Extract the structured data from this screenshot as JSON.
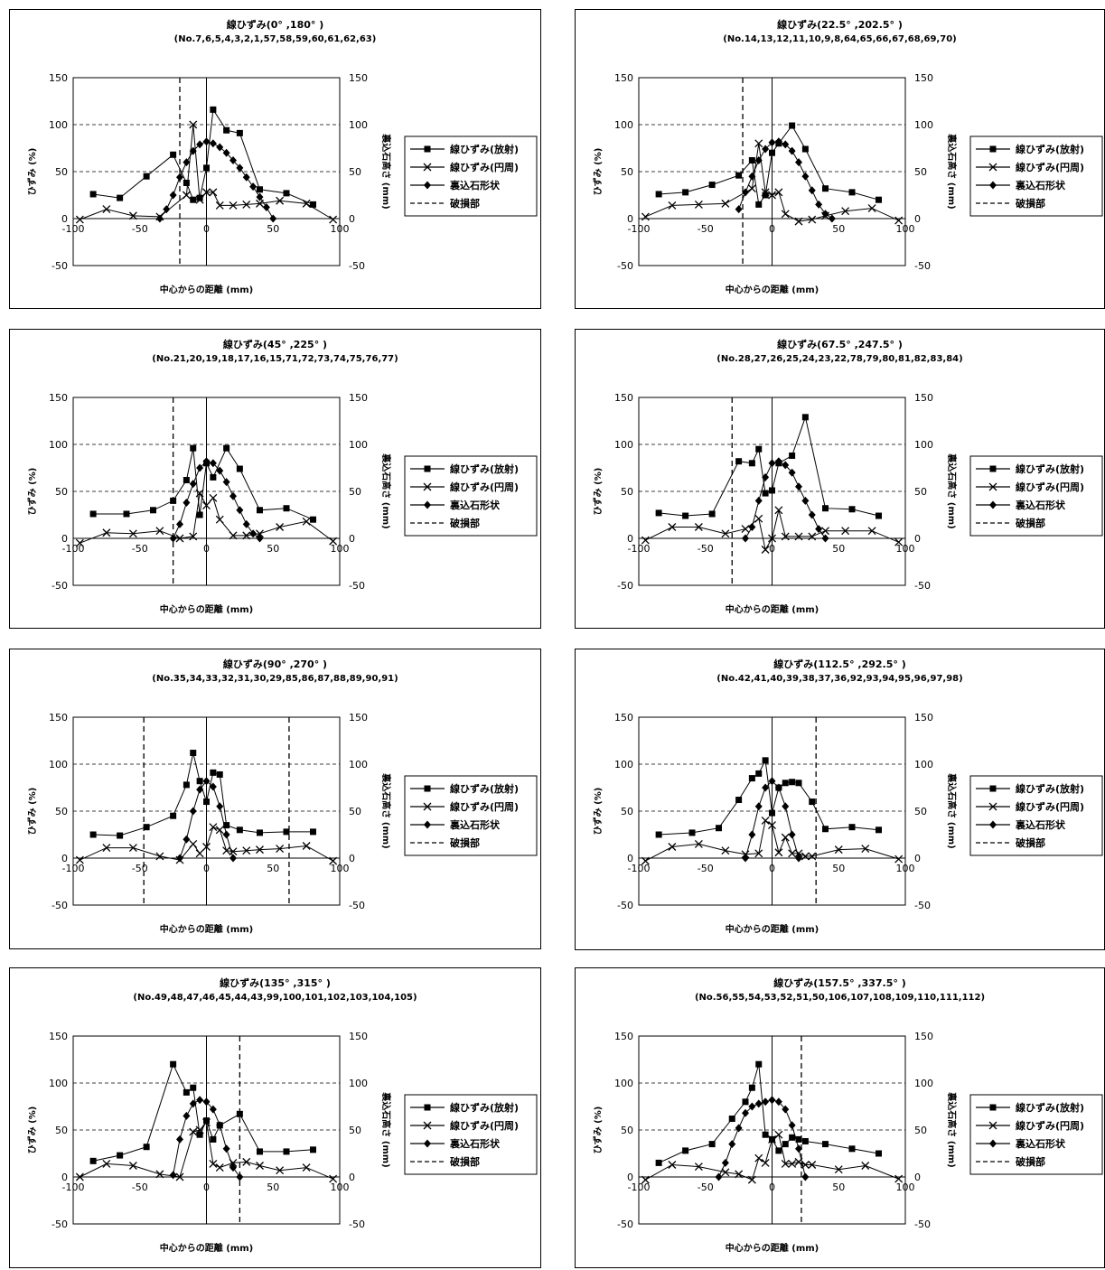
{
  "common": {
    "xlabel": "中心からの距離 (mm)",
    "ylabel_left": "ひずみ (%)",
    "ylabel_right": "裏込石高さ (mm)",
    "legend": [
      "線ひずみ(放射)",
      "線ひずみ(円周)",
      "裏込石形状",
      "破損部"
    ],
    "x_ticks": [
      "-100",
      "-50",
      "0",
      "50",
      "100"
    ],
    "y_ticks": [
      "150",
      "100",
      "50",
      "0",
      "-50"
    ]
  },
  "chart_data": [
    {
      "type": "line",
      "title": "線ひずみ(0° ,180° )",
      "subtitle": "(No.7,6,5,4,3,2,1,57,58,59,60,61,62,63)",
      "xlim": [
        -100,
        100
      ],
      "ylim": [
        -50,
        150
      ],
      "ylim_right": [
        -50,
        150
      ],
      "series": [
        {
          "name": "線ひずみ(放射)",
          "x": [
            -85,
            -65,
            -45,
            -25,
            -15,
            -10,
            -5,
            0,
            5,
            15,
            25,
            40,
            60,
            80
          ],
          "y": [
            26,
            22,
            45,
            68,
            38,
            20,
            22,
            54,
            116,
            94,
            91,
            31,
            27,
            15
          ]
        },
        {
          "name": "線ひずみ(円周)",
          "x": [
            -95,
            -75,
            -55,
            -35,
            -15,
            -10,
            -5,
            0,
            5,
            10,
            20,
            30,
            40,
            55,
            75,
            95
          ],
          "y": [
            -1,
            10,
            3,
            2,
            25,
            100,
            20,
            28,
            28,
            14,
            14,
            15,
            16,
            19,
            16,
            -1
          ]
        },
        {
          "name": "裏込石形状",
          "x": [
            -35,
            -30,
            -25,
            -20,
            -15,
            -10,
            -5,
            0,
            5,
            10,
            15,
            20,
            25,
            30,
            35,
            40,
            45,
            50
          ],
          "y": [
            0,
            10,
            25,
            44,
            60,
            72,
            79,
            82,
            80,
            76,
            70,
            62,
            54,
            44,
            34,
            23,
            12,
            0
          ]
        }
      ],
      "damage_x": [
        -20
      ]
    },
    {
      "type": "line",
      "title": "線ひずみ(22.5° ,202.5° )",
      "subtitle": "(No.14,13,12,11,10,9,8,64,65,66,67,68,69,70)",
      "xlim": [
        -100,
        100
      ],
      "ylim": [
        -50,
        150
      ],
      "ylim_right": [
        -50,
        150
      ],
      "series": [
        {
          "name": "線ひずみ(放射)",
          "x": [
            -85,
            -65,
            -45,
            -25,
            -15,
            -10,
            -5,
            0,
            5,
            15,
            25,
            40,
            60,
            80
          ],
          "y": [
            26,
            28,
            36,
            46,
            62,
            15,
            25,
            70,
            80,
            99,
            74,
            32,
            28,
            20
          ]
        },
        {
          "name": "線ひずみ(円周)",
          "x": [
            -95,
            -75,
            -55,
            -35,
            -15,
            -10,
            -5,
            0,
            5,
            10,
            20,
            30,
            40,
            55,
            75,
            95
          ],
          "y": [
            2,
            14,
            15,
            16,
            32,
            80,
            28,
            25,
            28,
            5,
            -3,
            -1,
            3,
            8,
            11,
            -2
          ]
        },
        {
          "name": "裏込石形状",
          "x": [
            -25,
            -20,
            -15,
            -10,
            -5,
            0,
            5,
            10,
            15,
            20,
            25,
            30,
            35,
            40,
            45
          ],
          "y": [
            10,
            28,
            45,
            62,
            74,
            81,
            82,
            79,
            72,
            60,
            45,
            30,
            15,
            5,
            0
          ]
        }
      ],
      "damage_x": [
        -22
      ]
    },
    {
      "type": "line",
      "title": "線ひずみ(45° ,225° )",
      "subtitle": "(No.21,20,19,18,17,16,15,71,72,73,74,75,76,77)",
      "xlim": [
        -100,
        100
      ],
      "ylim": [
        -50,
        150
      ],
      "ylim_right": [
        -50,
        150
      ],
      "series": [
        {
          "name": "線ひずみ(放射)",
          "x": [
            -85,
            -60,
            -40,
            -25,
            -15,
            -10,
            -5,
            0,
            5,
            15,
            25,
            40,
            60,
            80
          ],
          "y": [
            26,
            26,
            30,
            40,
            62,
            96,
            25,
            80,
            65,
            96,
            74,
            30,
            32,
            20
          ]
        },
        {
          "name": "線ひずみ(円周)",
          "x": [
            -95,
            -75,
            -55,
            -35,
            -20,
            -10,
            -5,
            0,
            5,
            10,
            20,
            30,
            40,
            55,
            75,
            95
          ],
          "y": [
            -5,
            6,
            5,
            8,
            0,
            2,
            48,
            35,
            43,
            20,
            3,
            3,
            5,
            12,
            18,
            -3
          ]
        },
        {
          "name": "裏込石形状",
          "x": [
            -25,
            -20,
            -15,
            -10,
            -5,
            0,
            5,
            10,
            15,
            20,
            25,
            30,
            35,
            40
          ],
          "y": [
            0,
            15,
            38,
            58,
            75,
            82,
            80,
            72,
            60,
            45,
            30,
            15,
            5,
            0
          ]
        }
      ],
      "damage_x": [
        -25
      ]
    },
    {
      "type": "line",
      "title": "線ひずみ(67.5° ,247.5° )",
      "subtitle": "(No.28,27,26,25,24,23,22,78,79,80,81,82,83,84)",
      "xlim": [
        -100,
        100
      ],
      "ylim": [
        -50,
        150
      ],
      "ylim_right": [
        -50,
        150
      ],
      "series": [
        {
          "name": "線ひずみ(放射)",
          "x": [
            -85,
            -65,
            -45,
            -25,
            -15,
            -10,
            -5,
            0,
            5,
            15,
            25,
            40,
            60,
            80
          ],
          "y": [
            27,
            24,
            26,
            82,
            80,
            95,
            48,
            51,
            80,
            88,
            129,
            32,
            31,
            24
          ]
        },
        {
          "name": "線ひずみ(円周)",
          "x": [
            -95,
            -75,
            -55,
            -35,
            -20,
            -10,
            -5,
            0,
            5,
            10,
            20,
            30,
            40,
            55,
            75,
            95
          ],
          "y": [
            -2,
            12,
            12,
            5,
            10,
            21,
            -12,
            0,
            30,
            2,
            2,
            2,
            8,
            8,
            8,
            -4
          ]
        },
        {
          "name": "裏込石形状",
          "x": [
            -20,
            -15,
            -10,
            -5,
            0,
            5,
            10,
            15,
            20,
            25,
            30,
            35,
            40
          ],
          "y": [
            0,
            12,
            40,
            65,
            80,
            82,
            78,
            70,
            55,
            40,
            25,
            10,
            0
          ]
        }
      ],
      "damage_x": [
        -30
      ]
    },
    {
      "type": "line",
      "title": "線ひずみ(90° ,270° )",
      "subtitle": "(No.35,34,33,32,31,30,29,85,86,87,88,89,90,91)",
      "xlim": [
        -100,
        100
      ],
      "ylim": [
        -50,
        150
      ],
      "ylim_right": [
        -50,
        150
      ],
      "series": [
        {
          "name": "線ひずみ(放射)",
          "x": [
            -85,
            -65,
            -45,
            -25,
            -15,
            -10,
            -5,
            0,
            5,
            10,
            15,
            25,
            40,
            60,
            80
          ],
          "y": [
            25,
            24,
            33,
            45,
            78,
            112,
            82,
            60,
            91,
            89,
            35,
            30,
            27,
            28,
            28
          ]
        },
        {
          "name": "線ひずみ(円周)",
          "x": [
            -95,
            -75,
            -55,
            -35,
            -20,
            -10,
            -5,
            0,
            5,
            10,
            15,
            20,
            30,
            40,
            55,
            75,
            95
          ],
          "y": [
            -2,
            11,
            11,
            2,
            -2,
            15,
            5,
            12,
            33,
            30,
            8,
            7,
            8,
            9,
            10,
            13,
            -3
          ]
        },
        {
          "name": "裏込石形状",
          "x": [
            -20,
            -15,
            -10,
            -5,
            0,
            5,
            10,
            15,
            20
          ],
          "y": [
            0,
            20,
            50,
            73,
            82,
            76,
            55,
            25,
            0
          ]
        }
      ],
      "damage_x": [
        -47,
        62
      ]
    },
    {
      "type": "line",
      "title": "線ひずみ(112.5° ,292.5° )",
      "subtitle": "(No.42,41,40,39,38,37,36,92,93,94,95,96,97,98)",
      "xlim": [
        -100,
        100
      ],
      "ylim": [
        -50,
        150
      ],
      "ylim_right": [
        -50,
        150
      ],
      "series": [
        {
          "name": "線ひずみ(放射)",
          "x": [
            -85,
            -60,
            -40,
            -25,
            -15,
            -10,
            -5,
            0,
            5,
            10,
            15,
            20,
            30,
            40,
            60,
            80
          ],
          "y": [
            25,
            27,
            32,
            62,
            85,
            90,
            104,
            48,
            75,
            80,
            81,
            80,
            60,
            31,
            33,
            30
          ]
        },
        {
          "name": "線ひずみ(円周)",
          "x": [
            -95,
            -75,
            -55,
            -35,
            -20,
            -10,
            -5,
            0,
            5,
            10,
            15,
            20,
            25,
            30,
            50,
            70,
            95
          ],
          "y": [
            -3,
            12,
            15,
            8,
            4,
            5,
            40,
            35,
            6,
            22,
            5,
            5,
            2,
            2,
            9,
            10,
            -1
          ]
        },
        {
          "name": "裏込石形状",
          "x": [
            -20,
            -15,
            -10,
            -5,
            0,
            5,
            10,
            15,
            20
          ],
          "y": [
            0,
            25,
            55,
            75,
            82,
            75,
            55,
            25,
            0
          ]
        }
      ],
      "damage_x": [
        33
      ]
    },
    {
      "type": "line",
      "title": "線ひずみ(135° ,315° )",
      "subtitle": "(No.49,48,47,46,45,44,43,99,100,101,102,103,104,105)",
      "xlim": [
        -100,
        100
      ],
      "ylim": [
        -50,
        150
      ],
      "ylim_right": [
        -50,
        150
      ],
      "series": [
        {
          "name": "線ひずみ(放射)",
          "x": [
            -85,
            -65,
            -45,
            -25,
            -15,
            -10,
            -5,
            0,
            5,
            10,
            25,
            40,
            60,
            80
          ],
          "y": [
            17,
            23,
            32,
            120,
            90,
            95,
            45,
            60,
            40,
            55,
            67,
            27,
            27,
            29
          ]
        },
        {
          "name": "線ひずみ(円周)",
          "x": [
            -95,
            -75,
            -55,
            -35,
            -20,
            -10,
            -5,
            0,
            5,
            10,
            20,
            30,
            40,
            55,
            75,
            95
          ],
          "y": [
            0,
            14,
            12,
            3,
            0,
            48,
            50,
            58,
            14,
            10,
            15,
            16,
            12,
            7,
            10,
            -2
          ]
        },
        {
          "name": "裏込石形状",
          "x": [
            -25,
            -20,
            -15,
            -10,
            -5,
            0,
            5,
            10,
            15,
            20,
            25
          ],
          "y": [
            2,
            40,
            65,
            78,
            82,
            80,
            72,
            55,
            30,
            10,
            0
          ]
        }
      ],
      "damage_x": [
        25
      ]
    },
    {
      "type": "line",
      "title": "線ひずみ(157.5° ,337.5° )",
      "subtitle": "(No.56,55,54,53,52,51,50,106,107,108,109,110,111,112)",
      "xlim": [
        -100,
        100
      ],
      "ylim": [
        -50,
        150
      ],
      "ylim_right": [
        -50,
        150
      ],
      "series": [
        {
          "name": "線ひずみ(放射)",
          "x": [
            -85,
            -65,
            -45,
            -30,
            -20,
            -15,
            -10,
            -5,
            0,
            5,
            10,
            15,
            20,
            25,
            40,
            60,
            80
          ],
          "y": [
            15,
            28,
            35,
            62,
            80,
            95,
            120,
            45,
            40,
            28,
            35,
            42,
            40,
            38,
            35,
            30,
            25
          ]
        },
        {
          "name": "線ひずみ(円周)",
          "x": [
            -95,
            -75,
            -55,
            -35,
            -25,
            -15,
            -10,
            -5,
            0,
            5,
            10,
            15,
            20,
            25,
            30,
            50,
            70,
            95
          ],
          "y": [
            -3,
            13,
            11,
            5,
            3,
            -3,
            20,
            15,
            40,
            45,
            14,
            14,
            16,
            13,
            13,
            8,
            12,
            -2
          ]
        },
        {
          "name": "裏込石形状",
          "x": [
            -40,
            -35,
            -30,
            -25,
            -20,
            -15,
            -10,
            -5,
            0,
            5,
            10,
            15,
            20,
            25
          ],
          "y": [
            0,
            15,
            35,
            52,
            68,
            75,
            78,
            80,
            82,
            80,
            72,
            55,
            30,
            0
          ]
        }
      ],
      "damage_x": [
        22
      ]
    }
  ]
}
